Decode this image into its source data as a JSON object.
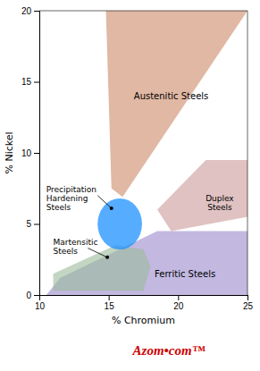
{
  "chart_data": {
    "type": "region",
    "xlabel": "% Chromium",
    "ylabel": "% Nickel",
    "xlim": [
      10,
      25
    ],
    "ylim": [
      0,
      20
    ],
    "xticks": [
      10,
      15,
      20,
      25
    ],
    "yticks": [
      0,
      5,
      10,
      15,
      20
    ],
    "series": [
      {
        "name": "Ferritic Steels",
        "type": "polygon",
        "color": "#9988cc",
        "x": [
          10.5,
          25.0,
          25.0,
          18.5,
          11.5
        ],
        "values": [
          0.0,
          0.0,
          4.5,
          4.5,
          1.2
        ],
        "label_x": 20.5,
        "label_y": 1.5
      },
      {
        "name": "Austenitic Steels",
        "type": "polygon",
        "color": "#cc8866",
        "x": [
          14.8,
          15.2,
          16.0,
          25.0
        ],
        "values": [
          20,
          7.5,
          6.9,
          20
        ],
        "label_x": 19.5,
        "label_y": 14.0
      },
      {
        "name": "Duplex\nSteels",
        "type": "polygon",
        "color": "#cc9999",
        "x": [
          19.5,
          25.0,
          25.0,
          22.0,
          18.5
        ],
        "values": [
          4.5,
          5.5,
          9.5,
          9.5,
          6.0
        ],
        "label_x": 23.0,
        "label_y": 6.5
      },
      {
        "name": "Martensitic\nSteels",
        "type": "polygon",
        "color": "#99bb99",
        "x": [
          11.0,
          17.5,
          18.0,
          17.5,
          15.5,
          11.0
        ],
        "values": [
          0.3,
          0.3,
          2.0,
          3.2,
          3.5,
          1.5
        ],
        "label_x": 11.0,
        "label_y": 3.4
      },
      {
        "name": "Precipitation\nHardening\nSteels",
        "type": "ellipse",
        "color": "#1e90ff",
        "center_x": 15.8,
        "center_y": 5.0,
        "radius_x": 1.6,
        "radius_y": 1.8,
        "label_x": 10.5,
        "label_y": 6.8
      }
    ],
    "pointers": [
      {
        "x": 15.2,
        "y": 6.1,
        "text_x": 14.2,
        "text_y": 7.0
      },
      {
        "x": 14.9,
        "y": 2.65,
        "text_x": 13.5,
        "text_y": 3.3
      }
    ],
    "watermark": {
      "text": "Azom•com™",
      "color": "#cc0000"
    }
  }
}
